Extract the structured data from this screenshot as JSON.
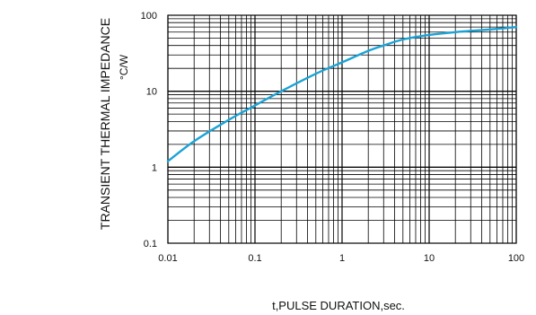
{
  "chart_data": {
    "type": "line",
    "title": "",
    "xlabel": "t,PULSE DURATION,sec.",
    "ylabel": "TRANSIENT THERMAL IMPEDANCE",
    "yunit": "°C/W",
    "xscale": "log",
    "yscale": "log",
    "xlim": [
      0.01,
      100
    ],
    "ylim": [
      0.1,
      100
    ],
    "xticks": [
      "0.01",
      "0.1",
      "1",
      "10",
      "100"
    ],
    "yticks": [
      "0.1",
      "1",
      "10",
      "100"
    ],
    "grid": true,
    "legend": "none",
    "series": [
      {
        "color": "#1ba3d6",
        "x": [
          0.01,
          0.02,
          0.05,
          0.1,
          0.2,
          0.5,
          1,
          2,
          3,
          5,
          10,
          20,
          50,
          100
        ],
        "y": [
          1.2,
          2.2,
          4.2,
          6.5,
          10,
          17,
          24,
          34,
          40,
          48,
          55,
          60,
          65,
          70
        ]
      }
    ]
  }
}
